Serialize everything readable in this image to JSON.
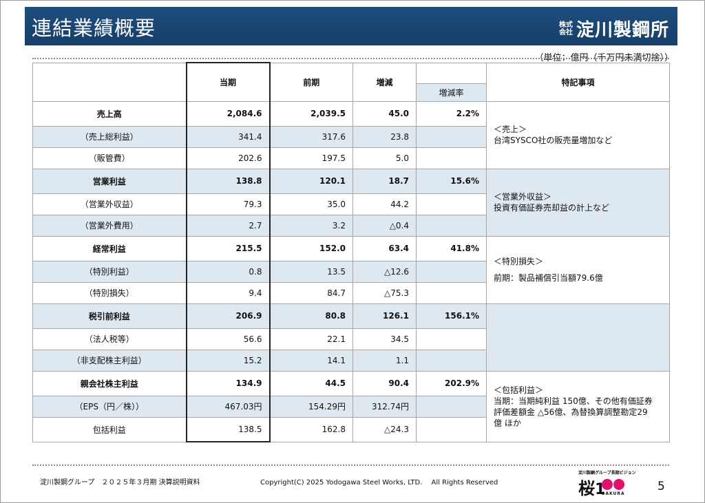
{
  "header": {
    "title": "連結業績概要",
    "logo_small": "株式会社",
    "logo_main": "淀川製鋼所"
  },
  "unit_note": "（単位：億円（千万円未満切捨））",
  "table": {
    "headers": {
      "current": "当期",
      "previous": "前期",
      "change": "増減",
      "change_rate": "増減率",
      "notes": "特記事項"
    },
    "groups": [
      {
        "main": {
          "label": "売上高",
          "current": "2,084.6",
          "previous": "2,039.5",
          "change": "45.0",
          "rate": "2.2%"
        },
        "subs": [
          {
            "label": "（売上総利益）",
            "current": "341.4",
            "previous": "317.6",
            "change": "23.8"
          },
          {
            "label": "（販管費）",
            "current": "202.6",
            "previous": "197.5",
            "change": "5.0"
          }
        ],
        "notes": [
          "＜売上＞",
          "台湾SYSCO社の販売量増加など"
        ]
      },
      {
        "main": {
          "label": "営業利益",
          "current": "138.8",
          "previous": "120.1",
          "change": "18.7",
          "rate": "15.6%"
        },
        "subs": [
          {
            "label": "（営業外収益）",
            "current": "79.3",
            "previous": "35.0",
            "change": "44.2"
          },
          {
            "label": "（営業外費用）",
            "current": "2.7",
            "previous": "3.2",
            "change": "△0.4"
          }
        ],
        "notes": [
          "＜営業外収益＞",
          "投資有価証券売却益の計上など"
        ]
      },
      {
        "main": {
          "label": "経常利益",
          "current": "215.5",
          "previous": "152.0",
          "change": "63.4",
          "rate": "41.8%"
        },
        "subs": [
          {
            "label": "（特別利益）",
            "current": "0.8",
            "previous": "13.5",
            "change": "△12.6"
          },
          {
            "label": "（特別損失）",
            "current": "9.4",
            "previous": "84.7",
            "change": "△75.3"
          }
        ],
        "notes": [
          "＜特別損失＞",
          "前期：製品補償引当額79.6億"
        ]
      },
      {
        "main": {
          "label": "税引前利益",
          "current": "206.9",
          "previous": "80.8",
          "change": "126.1",
          "rate": "156.1%"
        },
        "subs": [
          {
            "label": "（法人税等）",
            "current": "56.6",
            "previous": "22.1",
            "change": "34.5"
          },
          {
            "label": "（非支配株主利益）",
            "current": "15.2",
            "previous": "14.1",
            "change": "1.1"
          }
        ],
        "notes": []
      },
      {
        "main": {
          "label": "親会社株主利益",
          "current": "134.9",
          "previous": "44.5",
          "change": "90.4",
          "rate": "202.9%"
        },
        "subs": [
          {
            "label": "（EPS（円／株））",
            "current": "467.03円",
            "previous": "154.29円",
            "change": "312.74円"
          }
        ],
        "last": {
          "label": "包括利益",
          "current": "138.5",
          "previous": "162.8",
          "change": "△24.3"
        },
        "notes": [
          "＜包括利益＞",
          "当期：当期純利益 150億、その他有価証券",
          "評価差額金 △56億、為替換算調整勘定29",
          "億 ほか"
        ]
      }
    ]
  },
  "footer": {
    "left": "淀川製鋼グループ　２０２５年３月期 決算説明資料",
    "copyright": "Copyright(C) 2025 Yodogawa Steel Works, LTD.　 All Rights Reserved",
    "logo_sub": "淀川製鋼グループ長期ビジョン",
    "logo_main": "桜",
    "logo_num": "1",
    "logo_word": "SAKURA",
    "page": "5"
  },
  "colors": {
    "header_bg": "#1f4e7e",
    "shade": "#dde8f0",
    "petal": "#e0106c"
  }
}
